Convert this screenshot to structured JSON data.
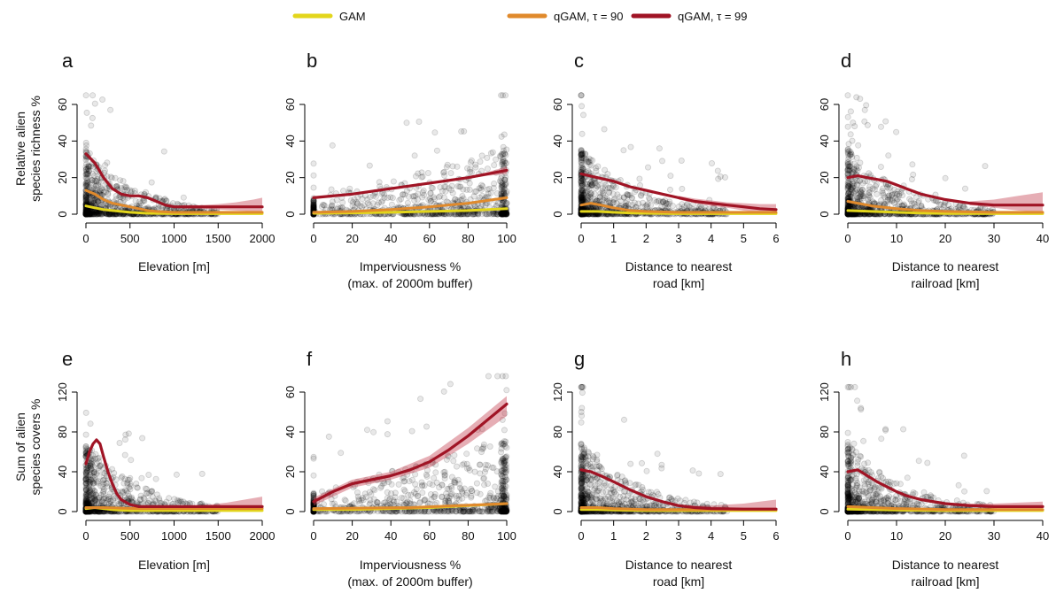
{
  "legend": [
    {
      "label": "GAM",
      "color": "#e3d61c"
    },
    {
      "label": "qGAM, τ = 90",
      "color": "#e08a2c"
    },
    {
      "label": "qGAM, τ = 99",
      "color": "#a01425"
    }
  ],
  "row_labels": [
    [
      "Relative alien",
      "species richness %"
    ],
    [
      "Sum of alien",
      "species covers %"
    ]
  ],
  "colors": {
    "gam": "#e3d61c",
    "q90": "#e08a2c",
    "q99": "#a01425",
    "band": "#c84c5c",
    "points": "#000000"
  },
  "chart_data": [
    {
      "type": "scatter",
      "panel": "a",
      "xlabel": [
        "Elevation [m]"
      ],
      "xlim": [
        0,
        2000
      ],
      "ylim": [
        0,
        65
      ],
      "xticks": [
        0,
        500,
        1000,
        1500,
        2000
      ],
      "yticks": [
        0,
        20,
        40,
        60
      ],
      "series": [
        {
          "key": "q99",
          "x": [
            0,
            100,
            200,
            300,
            400,
            500,
            600,
            700,
            800,
            900,
            1000,
            1200,
            1400,
            1600,
            1800,
            2000
          ],
          "y": [
            33,
            28,
            20,
            14,
            11,
            10,
            10,
            9,
            7,
            5,
            4,
            4,
            4,
            4,
            4,
            4
          ]
        },
        {
          "key": "q90",
          "x": [
            0,
            100,
            200,
            300,
            400,
            500,
            600,
            700,
            800,
            1000,
            1400,
            2000
          ],
          "y": [
            13,
            11,
            8,
            6,
            5,
            4,
            3,
            2,
            1.5,
            1,
            1,
            1
          ]
        },
        {
          "key": "gam",
          "x": [
            0,
            100,
            200,
            300,
            400,
            500,
            700,
            1000,
            2000
          ],
          "y": [
            4.5,
            3.5,
            2.5,
            2,
            1.5,
            1,
            0.5,
            0.3,
            0.3
          ]
        }
      ],
      "band": {
        "x": [
          1100,
          1300,
          1500,
          1700,
          1900,
          2000
        ],
        "lower": [
          3,
          3,
          2.5,
          2,
          1.5,
          1
        ],
        "upper": [
          5,
          5,
          5.5,
          6.5,
          8,
          9
        ]
      }
    },
    {
      "type": "scatter",
      "panel": "b",
      "xlabel": [
        "Imperviousness %",
        "(max. of 2000m buffer)"
      ],
      "xlim": [
        0,
        100
      ],
      "ylim": [
        0,
        65
      ],
      "xticks": [
        0,
        20,
        40,
        60,
        80,
        100
      ],
      "yticks": [
        0,
        20,
        40,
        60
      ],
      "series": [
        {
          "key": "q99",
          "x": [
            0,
            20,
            40,
            60,
            80,
            100
          ],
          "y": [
            9,
            11,
            14,
            17,
            20,
            24
          ]
        },
        {
          "key": "q90",
          "x": [
            0,
            20,
            40,
            60,
            80,
            100
          ],
          "y": [
            1,
            1.5,
            2.5,
            4,
            6,
            9
          ]
        },
        {
          "key": "gam",
          "x": [
            0,
            20,
            40,
            60,
            80,
            100
          ],
          "y": [
            0.5,
            0.7,
            1,
            1.5,
            2,
            3
          ]
        }
      ],
      "band": {
        "x": [
          80,
          90,
          100
        ],
        "lower": [
          19.5,
          21,
          22
        ],
        "upper": [
          20.5,
          23,
          26
        ]
      }
    },
    {
      "type": "scatter",
      "panel": "c",
      "xlabel": [
        "Distance to nearest",
        "road [km]"
      ],
      "xlim": [
        0,
        6
      ],
      "ylim": [
        0,
        65
      ],
      "xticks": [
        0,
        1,
        2,
        3,
        4,
        5,
        6
      ],
      "yticks": [
        0,
        20,
        40,
        60
      ],
      "series": [
        {
          "key": "q99",
          "x": [
            0,
            0.5,
            1,
            1.5,
            2,
            2.5,
            3,
            3.5,
            4,
            4.5,
            5,
            5.5,
            6
          ],
          "y": [
            22,
            20,
            18,
            15,
            13,
            11,
            9,
            7,
            6,
            5,
            4,
            3,
            2.5
          ]
        },
        {
          "key": "q90",
          "x": [
            0,
            0.3,
            0.6,
            1,
            1.5,
            2,
            3,
            4,
            6
          ],
          "y": [
            5,
            6,
            5,
            3.5,
            2,
            1.5,
            1,
            1,
            1
          ]
        },
        {
          "key": "gam",
          "x": [
            0,
            0.5,
            1,
            1.5,
            2,
            3,
            6
          ],
          "y": [
            1.5,
            1.5,
            1,
            0.7,
            0.5,
            0.3,
            0.3
          ]
        }
      ],
      "band": {
        "x": [
          3,
          3.5,
          4,
          4.5,
          5,
          5.5,
          6
        ],
        "lower": [
          8,
          6,
          4.5,
          3.5,
          2,
          1,
          0.5
        ],
        "upper": [
          10,
          8.5,
          7.5,
          6.5,
          6,
          5.5,
          5.5
        ]
      }
    },
    {
      "type": "scatter",
      "panel": "d",
      "xlabel": [
        "Distance to nearest",
        "railroad [km]"
      ],
      "xlim": [
        0,
        40
      ],
      "ylim": [
        0,
        65
      ],
      "xticks": [
        0,
        10,
        20,
        30,
        40
      ],
      "yticks": [
        0,
        20,
        40,
        60
      ],
      "series": [
        {
          "key": "q99",
          "x": [
            0,
            2,
            4,
            6,
            8,
            10,
            12,
            15,
            20,
            25,
            30,
            35,
            40
          ],
          "y": [
            20,
            21,
            20,
            19,
            18,
            16,
            14,
            11,
            8,
            6,
            5,
            5,
            5
          ]
        },
        {
          "key": "q90",
          "x": [
            0,
            2,
            5,
            10,
            15,
            20,
            30,
            40
          ],
          "y": [
            7,
            6,
            4.5,
            3,
            2,
            1.5,
            1,
            1
          ]
        },
        {
          "key": "gam",
          "x": [
            0,
            5,
            10,
            15,
            20,
            40
          ],
          "y": [
            2,
            1.5,
            1,
            0.6,
            0.4,
            0.3
          ]
        }
      ],
      "band": {
        "x": [
          25,
          30,
          35,
          40
        ],
        "lower": [
          5,
          3.5,
          2,
          1
        ],
        "upper": [
          7,
          8,
          10,
          12
        ]
      }
    },
    {
      "type": "scatter",
      "panel": "e",
      "xlabel": [
        "Elevation [m]"
      ],
      "xlim": [
        0,
        2000
      ],
      "ylim": [
        0,
        125
      ],
      "xticks": [
        0,
        500,
        1000,
        1500,
        2000
      ],
      "yticks": [
        0,
        40,
        80,
        120
      ],
      "series": [
        {
          "key": "q99",
          "x": [
            0,
            40,
            80,
            120,
            160,
            200,
            250,
            300,
            350,
            400,
            500,
            600,
            800,
            1000,
            1500,
            2000
          ],
          "y": [
            48,
            60,
            68,
            72,
            68,
            55,
            40,
            28,
            18,
            12,
            7,
            5,
            5,
            5,
            5,
            5
          ]
        },
        {
          "key": "q90",
          "x": [
            0,
            200,
            400,
            600,
            2000
          ],
          "y": [
            4,
            4,
            3.5,
            3,
            3
          ]
        },
        {
          "key": "gam",
          "x": [
            0,
            100,
            200,
            300,
            500,
            800,
            1200,
            2000
          ],
          "y": [
            3,
            4,
            3,
            2,
            1,
            1,
            1,
            1
          ]
        }
      ],
      "band": {
        "x": [
          1200,
          1400,
          1600,
          1800,
          2000
        ],
        "lower": [
          4,
          3,
          2,
          1,
          0
        ],
        "upper": [
          6,
          7,
          9,
          12,
          15
        ]
      }
    },
    {
      "type": "scatter",
      "panel": "f",
      "xlabel": [
        "Imperviousness %",
        "(max. of 2000m buffer)"
      ],
      "xlim": [
        0,
        100
      ],
      "ylim": [
        0,
        68
      ],
      "xticks": [
        0,
        20,
        40,
        60,
        80,
        100
      ],
      "yticks": [
        0,
        20,
        40,
        60
      ],
      "series": [
        {
          "key": "q99",
          "x": [
            0,
            10,
            20,
            30,
            40,
            50,
            60,
            70,
            80,
            90,
            100
          ],
          "y": [
            5,
            10,
            14,
            16,
            18,
            21,
            25,
            31,
            38,
            46,
            54
          ]
        },
        {
          "key": "q90",
          "x": [
            0,
            50,
            100
          ],
          "y": [
            1.5,
            2,
            4
          ]
        },
        {
          "key": "gam",
          "x": [
            0,
            20,
            40,
            60,
            80,
            100
          ],
          "y": [
            1,
            1,
            1.5,
            2,
            3,
            4
          ]
        }
      ],
      "band": {
        "x": [
          0,
          20,
          40,
          60,
          80,
          100
        ],
        "lower": [
          3,
          12,
          16,
          22,
          34,
          48
        ],
        "upper": [
          7,
          16,
          20,
          28,
          42,
          58
        ]
      }
    },
    {
      "type": "scatter",
      "panel": "g",
      "xlabel": [
        "Distance to nearest",
        "road [km]"
      ],
      "xlim": [
        0,
        6
      ],
      "ylim": [
        0,
        125
      ],
      "xticks": [
        0,
        1,
        2,
        3,
        4,
        5,
        6
      ],
      "yticks": [
        0,
        40,
        80,
        120
      ],
      "series": [
        {
          "key": "q99",
          "x": [
            0,
            0.3,
            0.6,
            1,
            1.5,
            2,
            2.5,
            3,
            3.5,
            4,
            5,
            6
          ],
          "y": [
            42,
            40,
            36,
            30,
            22,
            15,
            10,
            6,
            4,
            3,
            2.5,
            2.5
          ]
        },
        {
          "key": "q90",
          "x": [
            0,
            0.5,
            1,
            2,
            6
          ],
          "y": [
            4,
            4,
            3,
            2,
            2
          ]
        },
        {
          "key": "gam",
          "x": [
            0,
            0.5,
            1,
            2,
            6
          ],
          "y": [
            2,
            2,
            1.5,
            1,
            1
          ]
        }
      ],
      "band": {
        "x": [
          3,
          3.5,
          4,
          4.5,
          5,
          5.5,
          6
        ],
        "lower": [
          5,
          3,
          2,
          1,
          0,
          0,
          0
        ],
        "upper": [
          7,
          6,
          6,
          7,
          8,
          10,
          12
        ]
      }
    },
    {
      "type": "scatter",
      "panel": "h",
      "xlabel": [
        "Distance to nearest",
        "railroad [km]"
      ],
      "xlim": [
        0,
        40
      ],
      "ylim": [
        0,
        125
      ],
      "xticks": [
        0,
        10,
        20,
        30,
        40
      ],
      "yticks": [
        0,
        40,
        80,
        120
      ],
      "series": [
        {
          "key": "q99",
          "x": [
            0,
            2,
            4,
            6,
            8,
            10,
            12,
            15,
            20,
            25,
            30,
            35,
            40
          ],
          "y": [
            40,
            42,
            36,
            30,
            25,
            20,
            16,
            12,
            8,
            6,
            5,
            5,
            5
          ]
        },
        {
          "key": "q90",
          "x": [
            0,
            5,
            10,
            20,
            40
          ],
          "y": [
            5,
            4,
            3,
            2,
            2
          ]
        },
        {
          "key": "gam",
          "x": [
            0,
            5,
            10,
            20,
            40
          ],
          "y": [
            2.5,
            2,
            1.5,
            1,
            1
          ]
        }
      ],
      "band": {
        "x": [
          20,
          25,
          30,
          35,
          40
        ],
        "lower": [
          7,
          5,
          3,
          2,
          1
        ],
        "upper": [
          9,
          8,
          8,
          9,
          10
        ]
      }
    }
  ]
}
